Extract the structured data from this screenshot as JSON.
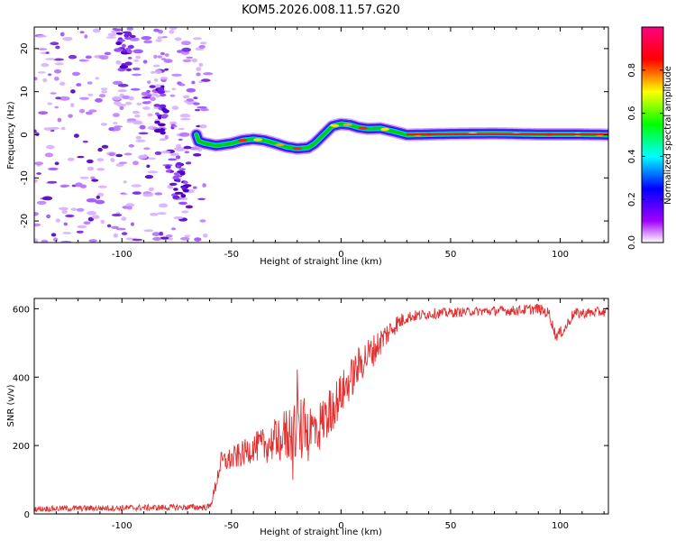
{
  "title": "KOM5.2026.008.11.57.G20",
  "colors": {
    "snr_line": "#e03030",
    "axis": "#000000",
    "spectrogram_ridge": "#00d000"
  },
  "chart_data": [
    {
      "type": "heatmap",
      "name": "spectrogram",
      "xlabel": "Height of straight line (km)",
      "ylabel": "Frequency (Hz)",
      "xlim": [
        -140,
        122
      ],
      "ylim": [
        -25,
        25
      ],
      "x_ticks": [
        -100,
        -50,
        0,
        50,
        100
      ],
      "y_ticks": [
        -20,
        -10,
        0,
        10,
        20
      ],
      "colorbar": {
        "label": "Normalized spectral amplitude",
        "range": [
          0,
          1
        ],
        "ticks": [
          "0.0",
          "0.2",
          "0.4",
          "0.6",
          "0.8"
        ],
        "colormap": [
          "#ffffff",
          "#a000ff",
          "#0000ff",
          "#00ffff",
          "#00ff00",
          "#ffff00",
          "#ff0000",
          "#ff0080"
        ]
      },
      "ridge": [
        {
          "x": -65,
          "y": -1.5
        },
        {
          "x": -62,
          "y": -2.0
        },
        {
          "x": -57,
          "y": -2.5
        },
        {
          "x": -50,
          "y": -2.0
        },
        {
          "x": -45,
          "y": -1.3
        },
        {
          "x": -40,
          "y": -1.0
        },
        {
          "x": -35,
          "y": -1.3
        },
        {
          "x": -30,
          "y": -2.0
        },
        {
          "x": -25,
          "y": -2.8
        },
        {
          "x": -20,
          "y": -3.2
        },
        {
          "x": -15,
          "y": -3.0
        },
        {
          "x": -12,
          "y": -2.0
        },
        {
          "x": -10,
          "y": -1.0
        },
        {
          "x": -7,
          "y": 0.5
        },
        {
          "x": -4,
          "y": 2.0
        },
        {
          "x": 0,
          "y": 2.5
        },
        {
          "x": 4,
          "y": 2.3
        },
        {
          "x": 8,
          "y": 1.7
        },
        {
          "x": 12,
          "y": 1.4
        },
        {
          "x": 18,
          "y": 1.5
        },
        {
          "x": 24,
          "y": 0.8
        },
        {
          "x": 30,
          "y": 0.0
        },
        {
          "x": 50,
          "y": 0.2
        },
        {
          "x": 70,
          "y": 0.3
        },
        {
          "x": 90,
          "y": 0.1
        },
        {
          "x": 110,
          "y": 0.1
        },
        {
          "x": 122,
          "y": 0.0
        }
      ],
      "ridge_strength": [
        0.45,
        0.5,
        0.55,
        0.6,
        0.65,
        0.6,
        0.55,
        0.6,
        0.7,
        0.75,
        0.6,
        0.45,
        0.4,
        0.45,
        0.55,
        0.8,
        0.7,
        0.75,
        0.85,
        0.7,
        0.6,
        0.85,
        0.6,
        0.55,
        0.6,
        0.7,
        0.6
      ]
    },
    {
      "type": "line",
      "name": "snr",
      "xlabel": "Height of straight line (km)",
      "ylabel": "SNR (v/v)",
      "xlim": [
        -140,
        122
      ],
      "ylim": [
        0,
        630
      ],
      "x_ticks": [
        -100,
        -50,
        0,
        50,
        100
      ],
      "y_ticks": [
        0,
        200,
        400,
        600
      ],
      "envelope": [
        {
          "x": -140,
          "y": 15
        },
        {
          "x": -60,
          "y": 20
        },
        {
          "x": -58,
          "y": 60
        },
        {
          "x": -55,
          "y": 150
        },
        {
          "x": -50,
          "y": 160
        },
        {
          "x": -45,
          "y": 175
        },
        {
          "x": -40,
          "y": 195
        },
        {
          "x": -35,
          "y": 200
        },
        {
          "x": -30,
          "y": 215
        },
        {
          "x": -25,
          "y": 230
        },
        {
          "x": -20,
          "y": 250
        },
        {
          "x": -15,
          "y": 240
        },
        {
          "x": -10,
          "y": 255
        },
        {
          "x": -5,
          "y": 300
        },
        {
          "x": 0,
          "y": 350
        },
        {
          "x": 5,
          "y": 400
        },
        {
          "x": 10,
          "y": 450
        },
        {
          "x": 15,
          "y": 480
        },
        {
          "x": 20,
          "y": 520
        },
        {
          "x": 25,
          "y": 555
        },
        {
          "x": 30,
          "y": 575
        },
        {
          "x": 40,
          "y": 585
        },
        {
          "x": 60,
          "y": 592
        },
        {
          "x": 80,
          "y": 595
        },
        {
          "x": 90,
          "y": 600
        },
        {
          "x": 95,
          "y": 585
        },
        {
          "x": 98,
          "y": 520
        },
        {
          "x": 102,
          "y": 540
        },
        {
          "x": 106,
          "y": 585
        },
        {
          "x": 122,
          "y": 592
        }
      ],
      "noise": [
        {
          "x": -140,
          "amp": 12
        },
        {
          "x": -60,
          "amp": 14
        },
        {
          "x": -55,
          "amp": 45
        },
        {
          "x": -40,
          "amp": 60
        },
        {
          "x": -30,
          "amp": 90
        },
        {
          "x": -20,
          "amp": 150
        },
        {
          "x": -10,
          "amp": 110
        },
        {
          "x": 0,
          "amp": 90
        },
        {
          "x": 10,
          "amp": 80
        },
        {
          "x": 20,
          "amp": 55
        },
        {
          "x": 30,
          "amp": 25
        },
        {
          "x": 60,
          "amp": 18
        },
        {
          "x": 100,
          "amp": 25
        },
        {
          "x": 122,
          "amp": 20
        }
      ]
    }
  ]
}
